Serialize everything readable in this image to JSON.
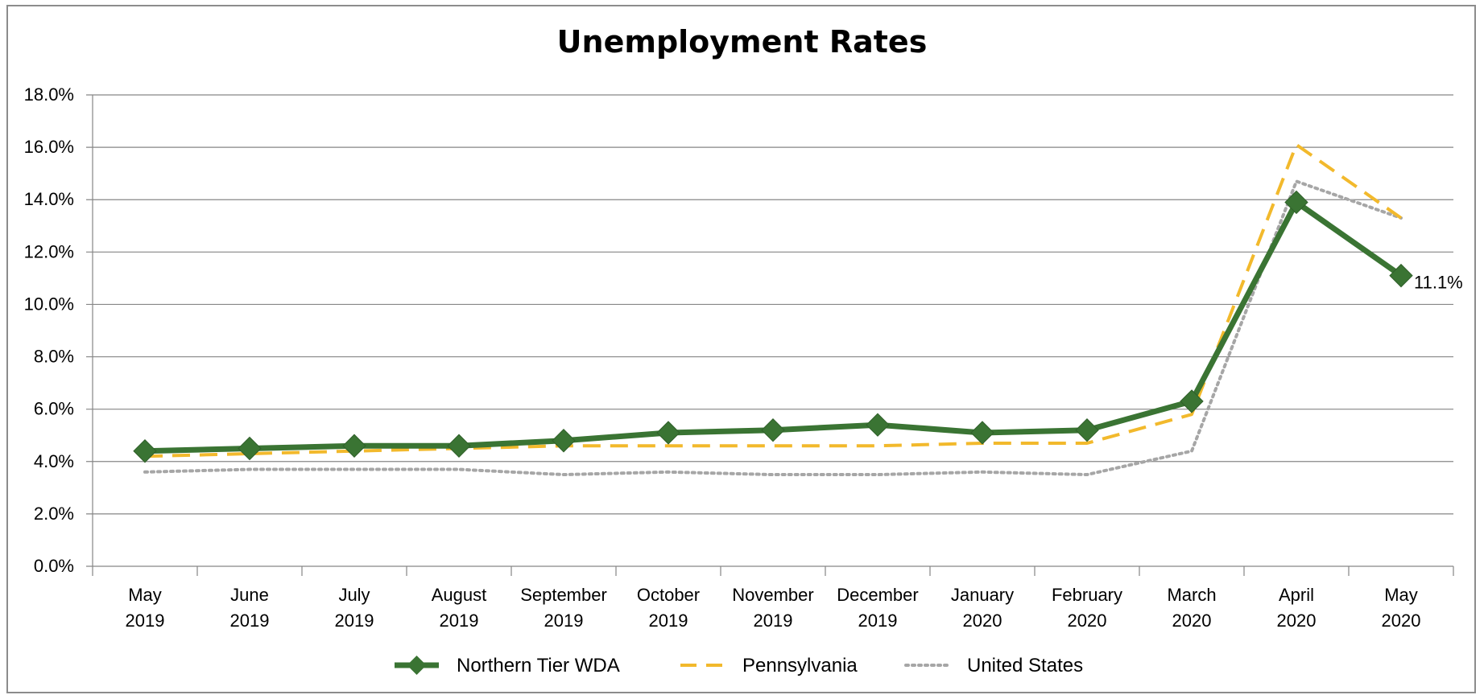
{
  "chart_data": {
    "type": "line",
    "title": "Unemployment Rates",
    "xlabel": "",
    "ylabel": "",
    "ylim": [
      0,
      18
    ],
    "y_tick_labels": [
      "0.0%",
      "2.0%",
      "4.0%",
      "6.0%",
      "8.0%",
      "10.0%",
      "12.0%",
      "14.0%",
      "16.0%",
      "18.0%"
    ],
    "categories": [
      [
        "May",
        "2019"
      ],
      [
        "June",
        "2019"
      ],
      [
        "July",
        "2019"
      ],
      [
        "August",
        "2019"
      ],
      [
        "September",
        "2019"
      ],
      [
        "October",
        "2019"
      ],
      [
        "November",
        "2019"
      ],
      [
        "December",
        "2019"
      ],
      [
        "January",
        "2020"
      ],
      [
        "February",
        "2020"
      ],
      [
        "March",
        "2020"
      ],
      [
        "April",
        "2020"
      ],
      [
        "May",
        "2020"
      ]
    ],
    "grid": true,
    "legend_position": "bottom",
    "series": [
      {
        "name": "Northern Tier WDA",
        "color": "#3a7433",
        "style": "solid-diamond",
        "values": [
          4.4,
          4.5,
          4.6,
          4.6,
          4.8,
          5.1,
          5.2,
          5.4,
          5.1,
          5.2,
          6.3,
          13.9,
          11.1
        ]
      },
      {
        "name": "Pennsylvania",
        "color": "#f2b92c",
        "style": "dashed",
        "values": [
          4.2,
          4.3,
          4.4,
          4.5,
          4.6,
          4.6,
          4.6,
          4.6,
          4.7,
          4.7,
          5.8,
          16.1,
          13.3
        ]
      },
      {
        "name": "United States",
        "color": "#a6a6a6",
        "style": "dotted",
        "values": [
          3.6,
          3.7,
          3.7,
          3.7,
          3.5,
          3.6,
          3.5,
          3.5,
          3.6,
          3.5,
          4.4,
          14.7,
          13.3
        ]
      }
    ],
    "annotations": [
      {
        "series": "Northern Tier WDA",
        "index": 12,
        "text": "11.1%"
      }
    ]
  }
}
